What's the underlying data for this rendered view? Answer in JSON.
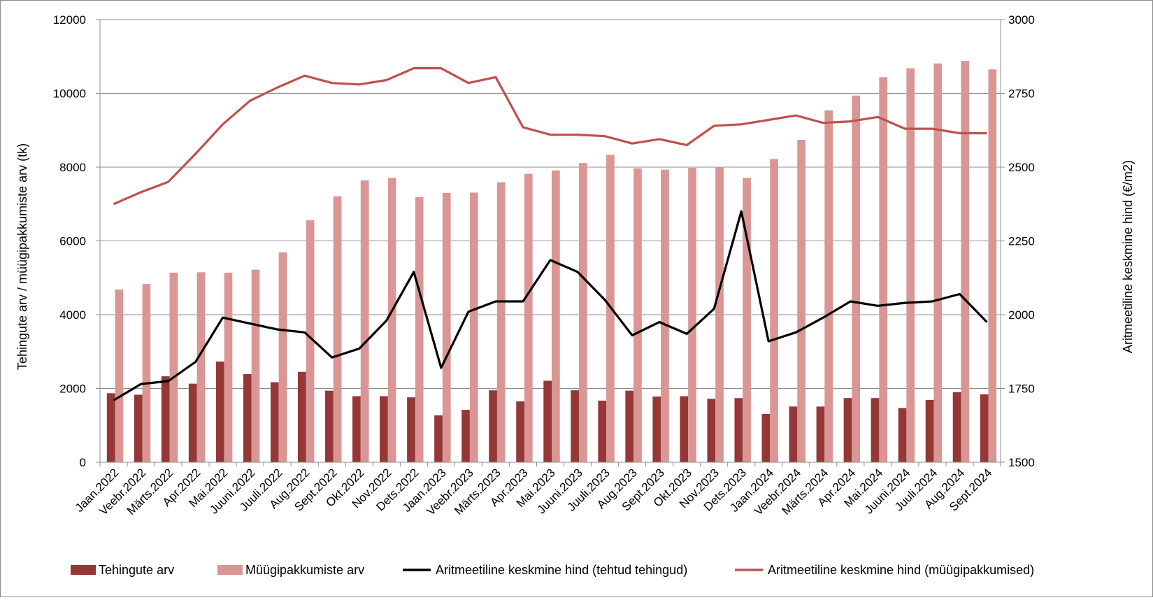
{
  "chart_data": {
    "type": "bar",
    "title": "",
    "categories": [
      "Jaan.2022",
      "Veebr.2022",
      "Märts.2022",
      "Apr.2022",
      "Mai.2022",
      "Juuni.2022",
      "Juuli.2022",
      "Aug.2022",
      "Sept.2022",
      "Okt.2022",
      "Nov.2022",
      "Dets.2022",
      "Jaan.2023",
      "Veebr.2023",
      "Märts.2023",
      "Apr.2023",
      "Mai.2023",
      "Juuni.2023",
      "Juuli.2023",
      "Aug.2023",
      "Sept.2023",
      "Okt.2023",
      "Nov.2023",
      "Dets.2023",
      "Jaan.2024",
      "Veebr.2024",
      "Märts.2024",
      "Apr.2024",
      "Mai.2024",
      "Juuni.2024",
      "Juuli.2024",
      "Aug.2024",
      "Sept.2024"
    ],
    "ylabel": "Tehingute arv / müügipakkumiste arv (tk)",
    "y2label": "Aritmeetiline keskmine hind (€/m2)",
    "ylim": [
      0,
      12000
    ],
    "y2lim": [
      1500,
      3000
    ],
    "yticks": [
      "0",
      "2000",
      "4000",
      "6000",
      "8000",
      "10000",
      "12000"
    ],
    "y2ticks": [
      "1500",
      "1750",
      "2000",
      "2250",
      "2500",
      "2750",
      "3000"
    ],
    "grid": true,
    "legend_position": "bottom",
    "series": [
      {
        "name": "Tehingute arv",
        "kind": "bar",
        "axis": "left",
        "color": "#953735",
        "values": [
          1870,
          1830,
          2330,
          2130,
          2730,
          2390,
          2170,
          2450,
          1940,
          1790,
          1790,
          1760,
          1270,
          1420,
          1950,
          1650,
          2210,
          1950,
          1670,
          1940,
          1780,
          1790,
          1720,
          1740,
          1310,
          1510,
          1510,
          1740,
          1740,
          1470,
          1690,
          1900,
          1840
        ]
      },
      {
        "name": "Müügipakkumiste arv",
        "kind": "bar",
        "axis": "left",
        "color": "#da9694",
        "values": [
          4680,
          4830,
          5140,
          5150,
          5140,
          5220,
          5690,
          6560,
          7210,
          7640,
          7710,
          7190,
          7300,
          7310,
          7590,
          7820,
          7910,
          8110,
          8330,
          7970,
          7930,
          7980,
          8010,
          7710,
          8220,
          8740,
          9540,
          9940,
          10440,
          10680,
          10810,
          10880,
          10650
        ]
      },
      {
        "name": "Aritmeetiline keskmine hind (tehtud tehingud)",
        "kind": "line",
        "axis": "right",
        "color": "#000000",
        "values": [
          1710,
          1765,
          1775,
          1840,
          1990,
          1970,
          1950,
          1940,
          1855,
          1885,
          1980,
          2145,
          1820,
          2010,
          2045,
          2045,
          2185,
          2145,
          2050,
          1930,
          1975,
          1935,
          2020,
          2350,
          1910,
          1940,
          1990,
          2045,
          2030,
          2040,
          2045,
          2070,
          1975
        ]
      },
      {
        "name": "Aritmeetiline keskmine hind (müügipakkumised)",
        "kind": "line",
        "axis": "right",
        "color": "#c0504d",
        "values": [
          2375,
          2415,
          2450,
          2545,
          2645,
          2725,
          2770,
          2810,
          2785,
          2780,
          2795,
          2835,
          2835,
          2785,
          2805,
          2635,
          2610,
          2610,
          2605,
          2580,
          2595,
          2575,
          2640,
          2645,
          2660,
          2675,
          2650,
          2655,
          2670,
          2630,
          2630,
          2615,
          2615
        ]
      }
    ]
  }
}
